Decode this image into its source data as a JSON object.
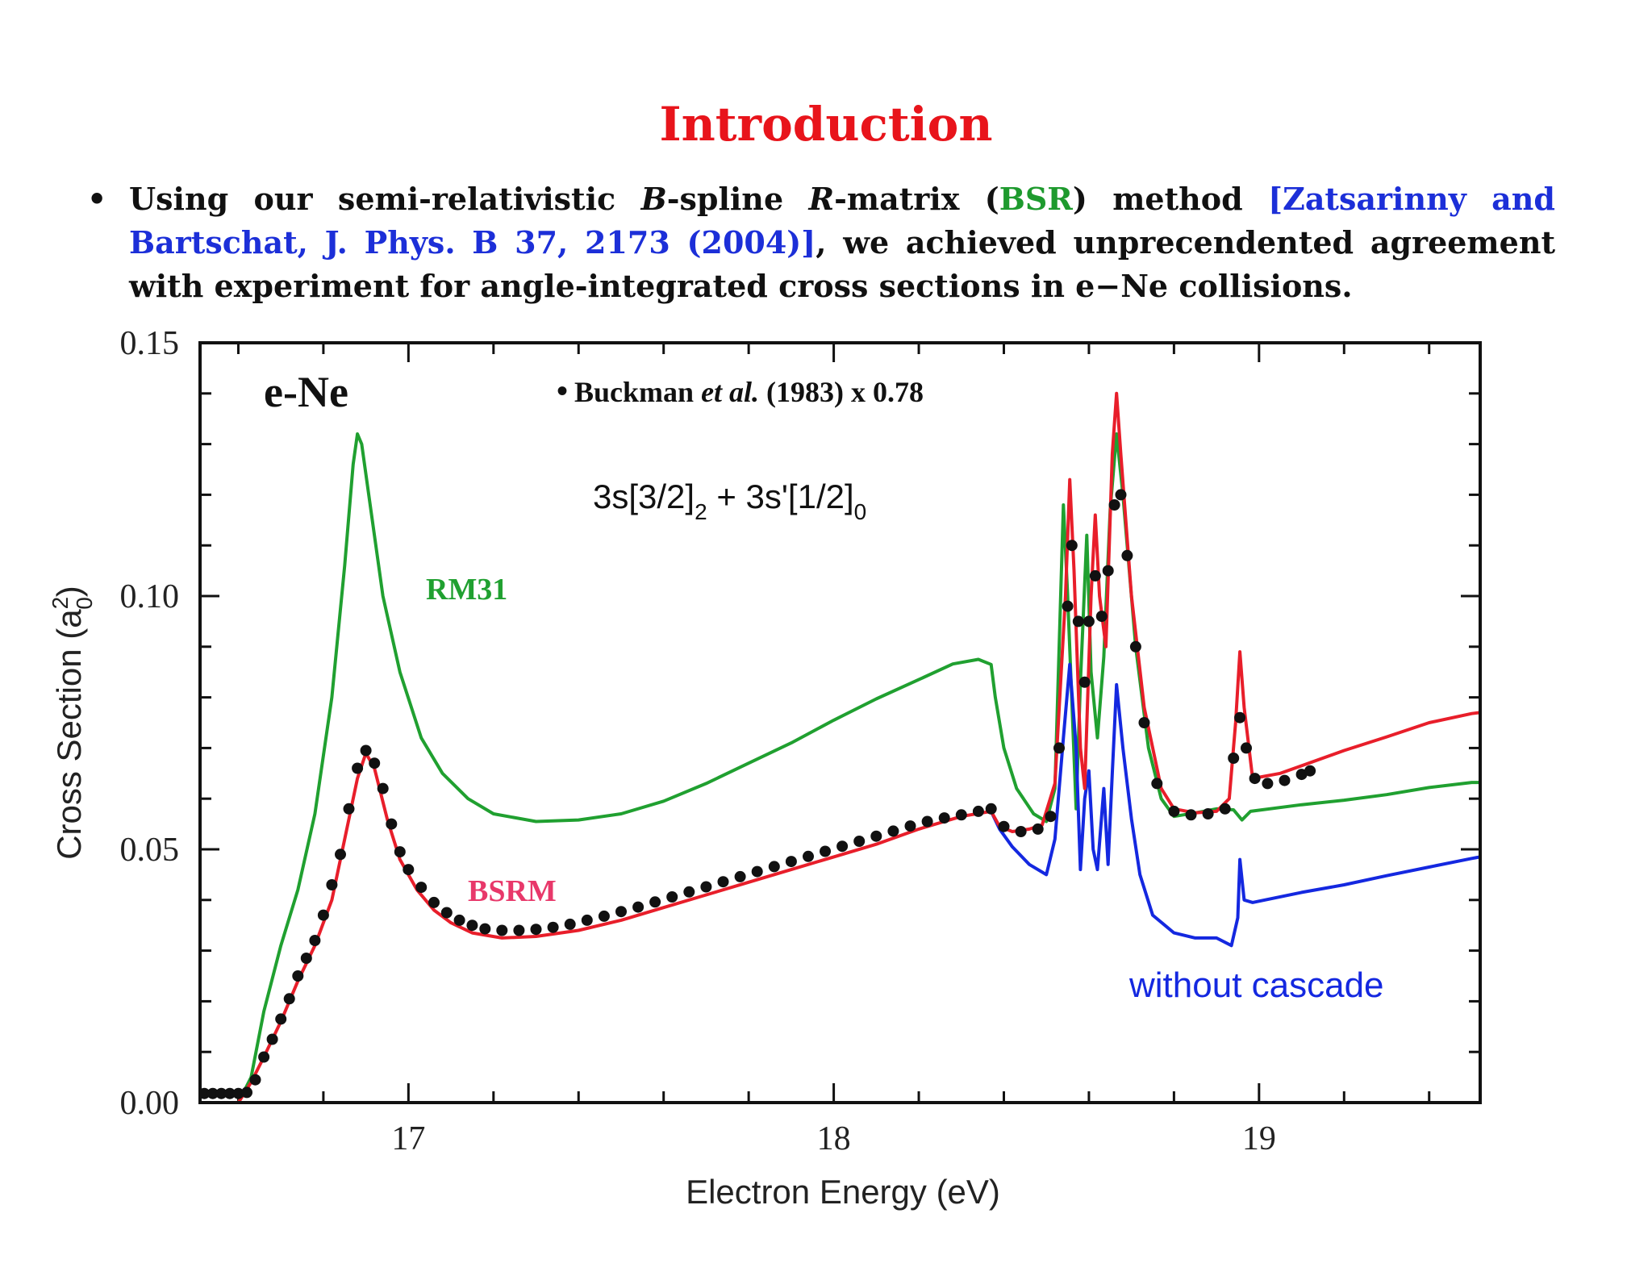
{
  "slide": {
    "title": "Introduction",
    "bullet": {
      "p1": "Using our semi-relativistic ",
      "b_letter": "B",
      "p2": "-spline ",
      "r_letter": "R",
      "p3": "-matrix (",
      "bsr": "BSR",
      "p4": ") method ",
      "citation": "[Zatsarinny and Bartschat, J. Phys. B 37, 2173 (2004)]",
      "p5": ", we achieved unprecendented agreement with experiment for angle-integrated cross sections in e−Ne collisions."
    }
  },
  "colors": {
    "title": "#e8141b",
    "bsr_green": "#1e9a2e",
    "citation_blue": "#1c2fd8",
    "rm31": "#20a030",
    "bsrm": "#e81e2a",
    "cascade": "#1428e0",
    "data": "#111111"
  },
  "chart_data": {
    "type": "line",
    "xlabel": "Electron Energy (eV)",
    "ylabel_main": "Cross Section (a",
    "ylabel_sup": "2",
    "ylabel_sub": "0",
    "ylabel_close": ")",
    "xlim": [
      16.51,
      19.52
    ],
    "ylim": [
      0.0,
      0.15
    ],
    "xticks": [
      "17",
      "18",
      "19"
    ],
    "yticks": [
      "0.00",
      "0.05",
      "0.10",
      "0.15"
    ],
    "panel_label": "e-Ne",
    "legend_data": {
      "marker": "•",
      "name_a": "Buckman ",
      "name_b": "et al.",
      "name_c": " (1983) x 0.78"
    },
    "transition": {
      "a": "3s[3/2]",
      "a_sub": "2",
      "b": " + 3s'[1/2]",
      "b_sub": "0"
    },
    "series": [
      {
        "name": "RM31",
        "color": "#20a030",
        "points": [
          [
            16.51,
            0
          ],
          [
            16.6,
            0
          ],
          [
            16.63,
            0.005
          ],
          [
            16.66,
            0.018
          ],
          [
            16.7,
            0.031
          ],
          [
            16.74,
            0.042
          ],
          [
            16.78,
            0.057
          ],
          [
            16.82,
            0.08
          ],
          [
            16.85,
            0.106
          ],
          [
            16.87,
            0.126
          ],
          [
            16.88,
            0.132
          ],
          [
            16.89,
            0.13
          ],
          [
            16.91,
            0.118
          ],
          [
            16.94,
            0.1
          ],
          [
            16.98,
            0.085
          ],
          [
            17.03,
            0.072
          ],
          [
            17.08,
            0.065
          ],
          [
            17.14,
            0.06
          ],
          [
            17.2,
            0.057
          ],
          [
            17.3,
            0.0555
          ],
          [
            17.4,
            0.0558
          ],
          [
            17.5,
            0.057
          ],
          [
            17.6,
            0.0595
          ],
          [
            17.7,
            0.063
          ],
          [
            17.8,
            0.067
          ],
          [
            17.9,
            0.071
          ],
          [
            18.0,
            0.0755
          ],
          [
            18.1,
            0.0797
          ],
          [
            18.2,
            0.0835
          ],
          [
            18.28,
            0.0866
          ],
          [
            18.34,
            0.0875
          ],
          [
            18.37,
            0.0865
          ],
          [
            18.38,
            0.08
          ],
          [
            18.4,
            0.07
          ],
          [
            18.43,
            0.062
          ],
          [
            18.47,
            0.057
          ],
          [
            18.5,
            0.0555
          ],
          [
            18.52,
            0.062
          ],
          [
            18.54,
            0.118
          ],
          [
            18.55,
            0.1
          ],
          [
            18.57,
            0.058
          ],
          [
            18.58,
            0.083
          ],
          [
            18.595,
            0.112
          ],
          [
            18.605,
            0.085
          ],
          [
            18.62,
            0.072
          ],
          [
            18.635,
            0.088
          ],
          [
            18.65,
            0.117
          ],
          [
            18.665,
            0.132
          ],
          [
            18.68,
            0.12
          ],
          [
            18.71,
            0.09
          ],
          [
            18.74,
            0.07
          ],
          [
            18.77,
            0.06
          ],
          [
            18.8,
            0.0565
          ],
          [
            18.85,
            0.0572
          ],
          [
            18.9,
            0.058
          ],
          [
            18.94,
            0.0578
          ],
          [
            18.96,
            0.0558
          ],
          [
            18.98,
            0.0575
          ],
          [
            19.1,
            0.0588
          ],
          [
            19.2,
            0.0597
          ],
          [
            19.3,
            0.0608
          ],
          [
            19.4,
            0.0622
          ],
          [
            19.5,
            0.0632
          ],
          [
            19.52,
            0.0632
          ]
        ]
      },
      {
        "name": "BSRM",
        "color": "#e81e2a",
        "points": [
          [
            16.51,
            0
          ],
          [
            16.6,
            0
          ],
          [
            16.63,
            0.004
          ],
          [
            16.66,
            0.009
          ],
          [
            16.7,
            0.016
          ],
          [
            16.74,
            0.024
          ],
          [
            16.78,
            0.031
          ],
          [
            16.82,
            0.04
          ],
          [
            16.85,
            0.052
          ],
          [
            16.88,
            0.064
          ],
          [
            16.9,
            0.069
          ],
          [
            16.92,
            0.066
          ],
          [
            16.95,
            0.056
          ],
          [
            16.98,
            0.048
          ],
          [
            17.02,
            0.042
          ],
          [
            17.06,
            0.038
          ],
          [
            17.1,
            0.0355
          ],
          [
            17.15,
            0.0335
          ],
          [
            17.22,
            0.0325
          ],
          [
            17.3,
            0.0328
          ],
          [
            17.4,
            0.034
          ],
          [
            17.5,
            0.036
          ],
          [
            17.6,
            0.0385
          ],
          [
            17.7,
            0.041
          ],
          [
            17.8,
            0.0435
          ],
          [
            17.9,
            0.046
          ],
          [
            18.0,
            0.0485
          ],
          [
            18.1,
            0.051
          ],
          [
            18.2,
            0.054
          ],
          [
            18.3,
            0.0565
          ],
          [
            18.37,
            0.0575
          ],
          [
            18.39,
            0.0545
          ],
          [
            18.42,
            0.0535
          ],
          [
            18.46,
            0.054
          ],
          [
            18.49,
            0.0548
          ],
          [
            18.52,
            0.063
          ],
          [
            18.545,
            0.1
          ],
          [
            18.555,
            0.123
          ],
          [
            18.565,
            0.105
          ],
          [
            18.58,
            0.07
          ],
          [
            18.59,
            0.062
          ],
          [
            18.605,
            0.1
          ],
          [
            18.615,
            0.116
          ],
          [
            18.625,
            0.1
          ],
          [
            18.64,
            0.09
          ],
          [
            18.655,
            0.128
          ],
          [
            18.665,
            0.14
          ],
          [
            18.675,
            0.128
          ],
          [
            18.7,
            0.1
          ],
          [
            18.73,
            0.078
          ],
          [
            18.77,
            0.062
          ],
          [
            18.8,
            0.058
          ],
          [
            18.85,
            0.0572
          ],
          [
            18.9,
            0.0575
          ],
          [
            18.93,
            0.06
          ],
          [
            18.945,
            0.075
          ],
          [
            18.955,
            0.089
          ],
          [
            18.965,
            0.078
          ],
          [
            18.985,
            0.064
          ],
          [
            19.05,
            0.065
          ],
          [
            19.1,
            0.0665
          ],
          [
            19.2,
            0.0695
          ],
          [
            19.3,
            0.0722
          ],
          [
            19.4,
            0.075
          ],
          [
            19.5,
            0.0768
          ],
          [
            19.52,
            0.077
          ]
        ]
      },
      {
        "name": "without cascade",
        "color": "#1428e0",
        "points": [
          [
            18.37,
            0.0575
          ],
          [
            18.39,
            0.054
          ],
          [
            18.42,
            0.0505
          ],
          [
            18.46,
            0.047
          ],
          [
            18.5,
            0.045
          ],
          [
            18.52,
            0.052
          ],
          [
            18.54,
            0.072
          ],
          [
            18.555,
            0.0865
          ],
          [
            18.57,
            0.07
          ],
          [
            18.58,
            0.046
          ],
          [
            18.59,
            0.06
          ],
          [
            18.6,
            0.0655
          ],
          [
            18.61,
            0.05
          ],
          [
            18.62,
            0.046
          ],
          [
            18.635,
            0.062
          ],
          [
            18.645,
            0.047
          ],
          [
            18.655,
            0.065
          ],
          [
            18.665,
            0.0825
          ],
          [
            18.68,
            0.07
          ],
          [
            18.7,
            0.056
          ],
          [
            18.72,
            0.045
          ],
          [
            18.75,
            0.037
          ],
          [
            18.8,
            0.0335
          ],
          [
            18.85,
            0.0325
          ],
          [
            18.9,
            0.0325
          ],
          [
            18.935,
            0.031
          ],
          [
            18.95,
            0.0365
          ],
          [
            18.955,
            0.048
          ],
          [
            18.965,
            0.04
          ],
          [
            18.985,
            0.0395
          ],
          [
            19.1,
            0.0415
          ],
          [
            19.2,
            0.043
          ],
          [
            19.3,
            0.0448
          ],
          [
            19.4,
            0.0465
          ],
          [
            19.5,
            0.0482
          ],
          [
            19.52,
            0.0485
          ]
        ]
      },
      {
        "name": "Buckman et al. (1983) x 0.78",
        "color": "#111111",
        "style": "points",
        "points": [
          [
            16.52,
            0.0018
          ],
          [
            16.54,
            0.0018
          ],
          [
            16.56,
            0.0018
          ],
          [
            16.58,
            0.0018
          ],
          [
            16.6,
            0.0018
          ],
          [
            16.62,
            0.002
          ],
          [
            16.64,
            0.0045
          ],
          [
            16.66,
            0.009
          ],
          [
            16.68,
            0.0125
          ],
          [
            16.7,
            0.0165
          ],
          [
            16.72,
            0.0205
          ],
          [
            16.74,
            0.025
          ],
          [
            16.76,
            0.0285
          ],
          [
            16.78,
            0.032
          ],
          [
            16.8,
            0.037
          ],
          [
            16.82,
            0.043
          ],
          [
            16.84,
            0.049
          ],
          [
            16.86,
            0.058
          ],
          [
            16.88,
            0.066
          ],
          [
            16.9,
            0.0695
          ],
          [
            16.92,
            0.067
          ],
          [
            16.94,
            0.062
          ],
          [
            16.96,
            0.055
          ],
          [
            16.98,
            0.0495
          ],
          [
            17.0,
            0.046
          ],
          [
            17.03,
            0.0425
          ],
          [
            17.06,
            0.0395
          ],
          [
            17.09,
            0.0375
          ],
          [
            17.12,
            0.036
          ],
          [
            17.15,
            0.035
          ],
          [
            17.18,
            0.0343
          ],
          [
            17.22,
            0.034
          ],
          [
            17.26,
            0.034
          ],
          [
            17.3,
            0.0342
          ],
          [
            17.34,
            0.0346
          ],
          [
            17.38,
            0.0352
          ],
          [
            17.42,
            0.036
          ],
          [
            17.46,
            0.0368
          ],
          [
            17.5,
            0.0377
          ],
          [
            17.54,
            0.0386
          ],
          [
            17.58,
            0.0396
          ],
          [
            17.62,
            0.0406
          ],
          [
            17.66,
            0.0416
          ],
          [
            17.7,
            0.0426
          ],
          [
            17.74,
            0.0436
          ],
          [
            17.78,
            0.0446
          ],
          [
            17.82,
            0.0456
          ],
          [
            17.86,
            0.0466
          ],
          [
            17.9,
            0.0476
          ],
          [
            17.94,
            0.0486
          ],
          [
            17.98,
            0.0496
          ],
          [
            18.02,
            0.0506
          ],
          [
            18.06,
            0.0516
          ],
          [
            18.1,
            0.0526
          ],
          [
            18.14,
            0.0536
          ],
          [
            18.18,
            0.0546
          ],
          [
            18.22,
            0.0555
          ],
          [
            18.26,
            0.0562
          ],
          [
            18.3,
            0.0568
          ],
          [
            18.34,
            0.0575
          ],
          [
            18.37,
            0.058
          ],
          [
            18.4,
            0.0545
          ],
          [
            18.44,
            0.0535
          ],
          [
            18.48,
            0.054
          ],
          [
            18.51,
            0.0565
          ],
          [
            18.53,
            0.07
          ],
          [
            18.55,
            0.098
          ],
          [
            18.56,
            0.11
          ],
          [
            18.575,
            0.095
          ],
          [
            18.59,
            0.083
          ],
          [
            18.6,
            0.095
          ],
          [
            18.615,
            0.104
          ],
          [
            18.63,
            0.096
          ],
          [
            18.645,
            0.105
          ],
          [
            18.66,
            0.118
          ],
          [
            18.675,
            0.12
          ],
          [
            18.69,
            0.108
          ],
          [
            18.71,
            0.09
          ],
          [
            18.73,
            0.075
          ],
          [
            18.76,
            0.063
          ],
          [
            18.8,
            0.0575
          ],
          [
            18.84,
            0.0568
          ],
          [
            18.88,
            0.057
          ],
          [
            18.92,
            0.058
          ],
          [
            18.94,
            0.068
          ],
          [
            18.955,
            0.076
          ],
          [
            18.97,
            0.07
          ],
          [
            18.99,
            0.064
          ],
          [
            19.02,
            0.063
          ],
          [
            19.06,
            0.0636
          ],
          [
            19.1,
            0.0648
          ],
          [
            19.12,
            0.0655
          ]
        ]
      }
    ]
  }
}
